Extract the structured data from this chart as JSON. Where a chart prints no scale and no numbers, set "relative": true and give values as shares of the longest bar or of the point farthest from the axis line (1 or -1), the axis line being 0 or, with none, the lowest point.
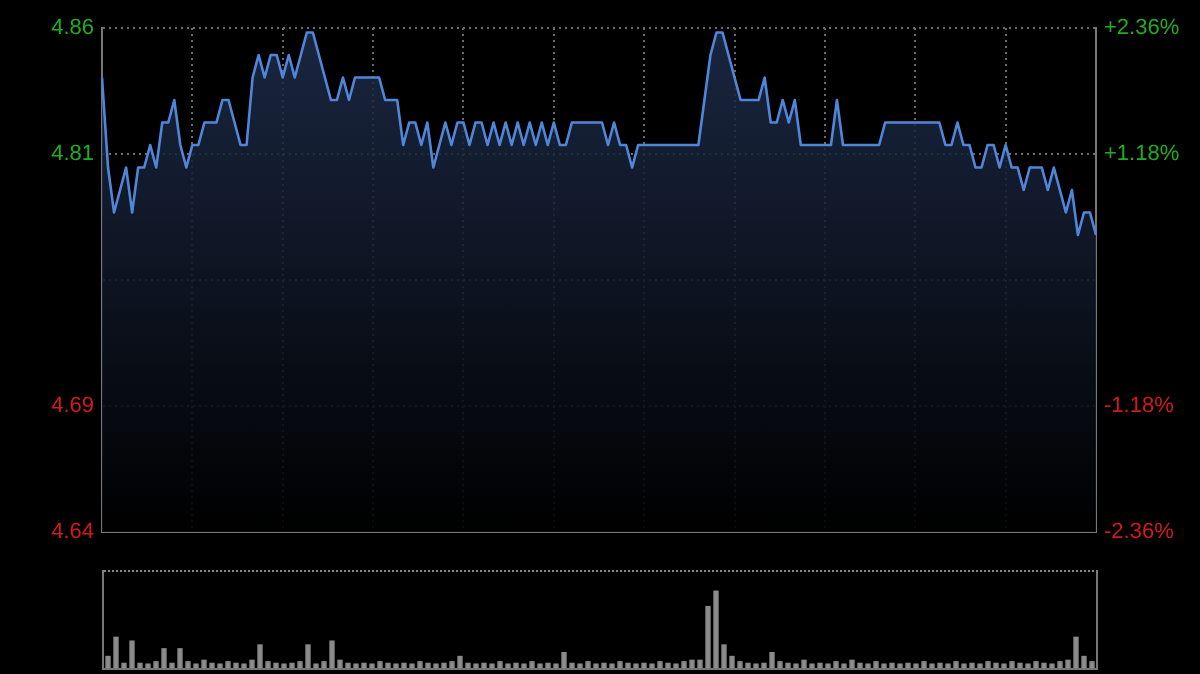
{
  "chart_data": [
    {
      "type": "area",
      "color": "#4f86d9",
      "grid": true,
      "categories": [
        null,
        null,
        null,
        null,
        null,
        null,
        null,
        null,
        null,
        null,
        null,
        null,
        null,
        null,
        null,
        null,
        null,
        null,
        null,
        null,
        null,
        null,
        null,
        null,
        null,
        null,
        null,
        null,
        null,
        null,
        null,
        null,
        null,
        null,
        null,
        null,
        null,
        null,
        null,
        null,
        null,
        null,
        null,
        null,
        null,
        null,
        null,
        null,
        null,
        null,
        null,
        null,
        null,
        null,
        null,
        null,
        null,
        null,
        null,
        null,
        null,
        null,
        null,
        null,
        null,
        null,
        null,
        null,
        null,
        null,
        null,
        null,
        null,
        null,
        null,
        null,
        null,
        null,
        null,
        null,
        null,
        null,
        null,
        null,
        null,
        null,
        null,
        null,
        null,
        null,
        null,
        null,
        null,
        null,
        null,
        null,
        null,
        null,
        null,
        null,
        null,
        null,
        null,
        null,
        null,
        null,
        null,
        null,
        null,
        null,
        null,
        null,
        null,
        null,
        null,
        null,
        null,
        null,
        null,
        null,
        null,
        null,
        null,
        null,
        null,
        null,
        null,
        null,
        null,
        null,
        null,
        null,
        null,
        null,
        null,
        null,
        null,
        null,
        null,
        null,
        null,
        null,
        null,
        null,
        null,
        null,
        null,
        null,
        null,
        null,
        null,
        null,
        null,
        null,
        null,
        null,
        null,
        null,
        null,
        null,
        null,
        null,
        null,
        null,
        null,
        null
      ],
      "ylim": [
        4.638,
        4.862
      ],
      "yticks": [
        {
          "value": 4.638,
          "label": "4.64"
        },
        {
          "value": 4.694,
          "label": "4.69"
        },
        {
          "value": 4.75,
          "label": null
        },
        {
          "value": 4.806,
          "label": "4.81"
        },
        {
          "value": 4.862,
          "label": "4.86"
        }
      ],
      "y2lim": [
        -2.36,
        2.36
      ],
      "y2ticks": [
        {
          "value": -2.36,
          "label": "-2.36%"
        },
        {
          "value": -1.18,
          "label": "-1.18%"
        },
        {
          "value": 0,
          "label": null
        },
        {
          "value": 1.18,
          "label": "+1.18%"
        },
        {
          "value": 2.36,
          "label": "+2.36%"
        }
      ],
      "values": [
        4.84,
        4.8,
        4.78,
        4.79,
        4.8,
        4.78,
        4.8,
        4.8,
        4.81,
        4.8,
        4.82,
        4.82,
        4.83,
        4.81,
        4.8,
        4.81,
        4.81,
        4.82,
        4.82,
        4.82,
        4.83,
        4.83,
        4.82,
        4.81,
        4.81,
        4.84,
        4.85,
        4.84,
        4.85,
        4.85,
        4.84,
        4.85,
        4.84,
        4.85,
        4.86,
        4.86,
        4.85,
        4.84,
        4.83,
        4.83,
        4.84,
        4.83,
        4.84,
        4.84,
        4.84,
        4.84,
        4.84,
        4.83,
        4.83,
        4.83,
        4.81,
        4.82,
        4.82,
        4.81,
        4.82,
        4.8,
        4.81,
        4.82,
        4.81,
        4.82,
        4.82,
        4.81,
        4.82,
        4.82,
        4.81,
        4.82,
        4.81,
        4.82,
        4.81,
        4.82,
        4.81,
        4.82,
        4.81,
        4.82,
        4.81,
        4.82,
        4.81,
        4.81,
        4.82,
        4.82,
        4.82,
        4.82,
        4.82,
        4.82,
        4.81,
        4.82,
        4.81,
        4.81,
        4.8,
        4.81,
        4.81,
        4.81,
        4.81,
        4.81,
        4.81,
        4.81,
        4.81,
        4.81,
        4.81,
        4.81,
        4.83,
        4.85,
        4.86,
        4.86,
        4.85,
        4.84,
        4.83,
        4.83,
        4.83,
        4.83,
        4.84,
        4.82,
        4.82,
        4.83,
        4.82,
        4.83,
        4.81,
        4.81,
        4.81,
        4.81,
        4.81,
        4.81,
        4.83,
        4.81,
        4.81,
        4.81,
        4.81,
        4.81,
        4.81,
        4.81,
        4.82,
        4.82,
        4.82,
        4.82,
        4.82,
        4.82,
        4.82,
        4.82,
        4.82,
        4.82,
        4.81,
        4.81,
        4.82,
        4.81,
        4.81,
        4.8,
        4.8,
        4.81,
        4.81,
        4.8,
        4.81,
        4.8,
        4.8,
        4.79,
        4.8,
        4.8,
        4.8,
        4.79,
        4.8,
        4.79,
        4.78,
        4.79,
        4.77,
        4.78,
        4.78,
        4.77
      ]
    },
    {
      "type": "bar",
      "relative": true,
      "color": "#8a8a8a",
      "categories": [
        null,
        null,
        null,
        null,
        null,
        null,
        null,
        null,
        null,
        null,
        null,
        null,
        null,
        null,
        null,
        null,
        null,
        null,
        null,
        null,
        null,
        null,
        null,
        null,
        null,
        null,
        null,
        null,
        null,
        null,
        null,
        null,
        null,
        null,
        null,
        null,
        null,
        null,
        null,
        null,
        null,
        null,
        null,
        null,
        null,
        null,
        null,
        null,
        null,
        null,
        null,
        null,
        null,
        null,
        null,
        null,
        null,
        null,
        null,
        null,
        null,
        null,
        null,
        null,
        null,
        null,
        null,
        null,
        null,
        null,
        null,
        null,
        null,
        null,
        null,
        null,
        null,
        null,
        null,
        null,
        null,
        null,
        null,
        null,
        null,
        null,
        null,
        null,
        null,
        null,
        null,
        null,
        null,
        null,
        null,
        null,
        null,
        null,
        null,
        null,
        null,
        null,
        null,
        null,
        null,
        null,
        null,
        null,
        null,
        null,
        null,
        null,
        null,
        null,
        null,
        null,
        null,
        null,
        null,
        null,
        null,
        null,
        null,
        null
      ],
      "values": [
        0.15,
        0.4,
        0.06,
        0.35,
        0.06,
        0.05,
        0.08,
        0.25,
        0.06,
        0.25,
        0.08,
        0.05,
        0.1,
        0.06,
        0.05,
        0.08,
        0.06,
        0.05,
        0.1,
        0.3,
        0.08,
        0.06,
        0.05,
        0.06,
        0.08,
        0.3,
        0.05,
        0.08,
        0.35,
        0.1,
        0.06,
        0.05,
        0.06,
        0.05,
        0.08,
        0.06,
        0.05,
        0.06,
        0.05,
        0.08,
        0.06,
        0.05,
        0.06,
        0.08,
        0.15,
        0.06,
        0.05,
        0.06,
        0.05,
        0.08,
        0.05,
        0.06,
        0.05,
        0.08,
        0.05,
        0.06,
        0.05,
        0.2,
        0.06,
        0.05,
        0.08,
        0.05,
        0.06,
        0.05,
        0.08,
        0.06,
        0.05,
        0.06,
        0.05,
        0.08,
        0.06,
        0.05,
        0.08,
        0.1,
        0.1,
        0.8,
        1.0,
        0.3,
        0.15,
        0.08,
        0.06,
        0.05,
        0.06,
        0.2,
        0.08,
        0.06,
        0.05,
        0.1,
        0.05,
        0.06,
        0.05,
        0.08,
        0.05,
        0.1,
        0.06,
        0.05,
        0.08,
        0.05,
        0.06,
        0.05,
        0.06,
        0.05,
        0.08,
        0.05,
        0.06,
        0.05,
        0.08,
        0.05,
        0.06,
        0.05,
        0.08,
        0.06,
        0.05,
        0.08,
        0.06,
        0.05,
        0.08,
        0.06,
        0.05,
        0.08,
        0.1,
        0.4,
        0.15,
        0.08
      ]
    }
  ]
}
